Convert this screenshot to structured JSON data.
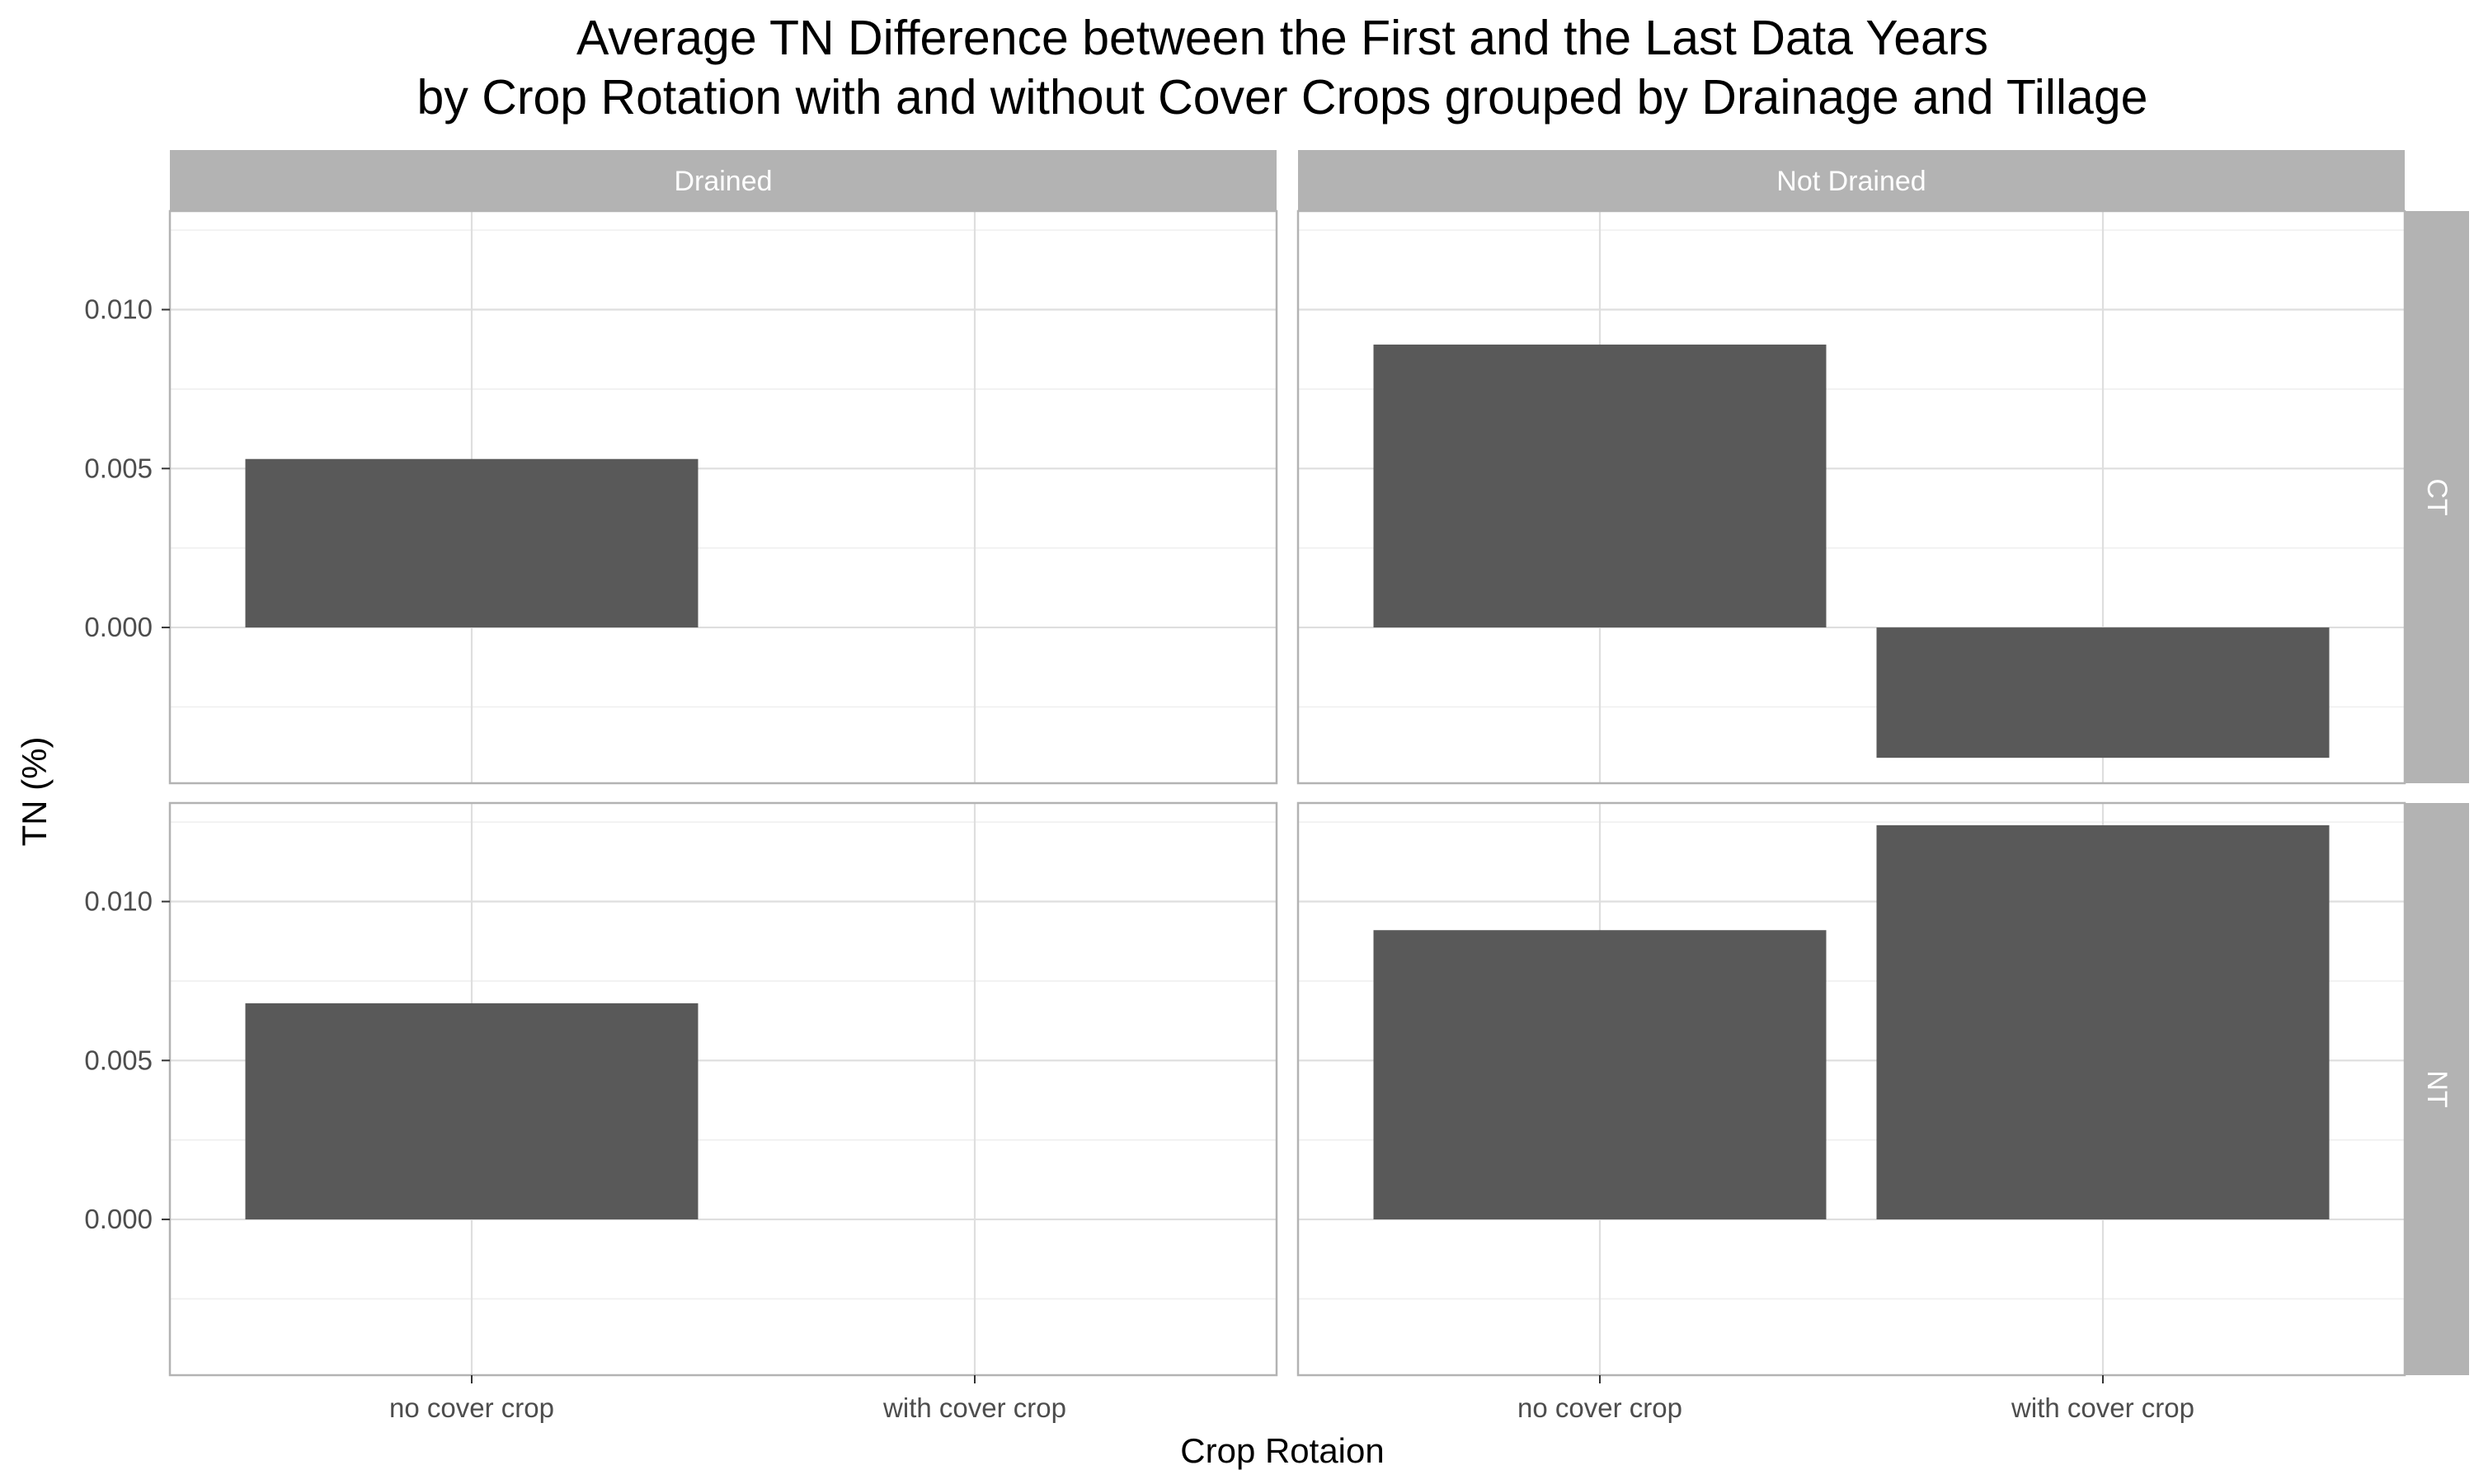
{
  "chart_data": {
    "type": "bar",
    "title_lines": [
      "Average TN Difference between the First and the Last Data Years",
      "by Crop Rotation with and without Cover Crops grouped by Drainage and Tillage"
    ],
    "xlabel": "Crop Rotaion",
    "ylabel": "TN (%)",
    "categories": [
      "no cover crop",
      "with cover crop"
    ],
    "facet_columns": [
      "Drained",
      "Not Drained"
    ],
    "facet_rows": [
      "CT",
      "NT"
    ],
    "y_ticks": [
      "0.000",
      "0.005",
      "0.010"
    ],
    "y_tick_values": [
      0,
      0.005,
      0.01
    ],
    "ylim": [
      -0.0049,
      0.0131
    ],
    "grid": true,
    "panels": [
      {
        "row": "CT",
        "column": "Drained",
        "values": [
          0.0053,
          null
        ]
      },
      {
        "row": "CT",
        "column": "Not Drained",
        "values": [
          0.0089,
          -0.0041
        ]
      },
      {
        "row": "NT",
        "column": "Drained",
        "values": [
          0.0068,
          null
        ]
      },
      {
        "row": "NT",
        "column": "Not Drained",
        "values": [
          0.0091,
          0.0124
        ]
      }
    ],
    "bar_color": "#595959",
    "strip_color": "#b3b3b3",
    "panel_border_color": "#b3b3b3",
    "grid_major_color": "#dedede",
    "grid_minor_color": "#efefef",
    "tick_label_color": "#4d4d4d"
  }
}
